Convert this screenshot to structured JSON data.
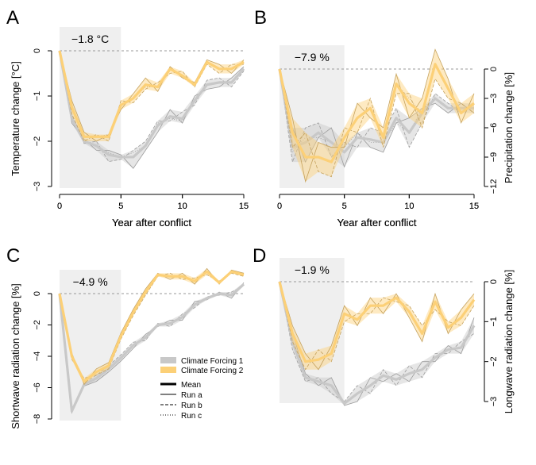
{
  "chart_data": [
    {
      "panel_label": "A",
      "type": "line",
      "annotation": "−1.8 °C",
      "xlabel": "Year after conflict",
      "ylabel": "Temperature change [°C]",
      "ylabel_side": "left",
      "xlim": [
        0,
        15
      ],
      "ylim": [
        -3,
        0.3
      ],
      "xticks": [
        0,
        5,
        10,
        15
      ],
      "yticks": [
        0,
        -1,
        -2,
        -3
      ],
      "ytick_labels": [
        "0",
        "−1",
        "−2",
        "−3"
      ],
      "highlight_x": [
        0,
        5
      ],
      "reference_y": 0,
      "x": [
        0,
        1,
        2,
        3,
        4,
        5,
        6,
        7,
        8,
        9,
        10,
        11,
        12,
        13,
        14,
        15
      ],
      "series": [
        {
          "name": "Climate Forcing 1",
          "color": "#c8c8c8",
          "mean": [
            0,
            -1.5,
            -2.0,
            -2.1,
            -2.3,
            -2.35,
            -2.35,
            -2.1,
            -1.65,
            -1.45,
            -1.5,
            -1.1,
            -0.75,
            -0.7,
            -0.7,
            -0.4
          ],
          "runs": [
            [
              0,
              -1.6,
              -1.95,
              -2.2,
              -2.2,
              -2.3,
              -2.6,
              -2.2,
              -1.8,
              -1.3,
              -1.6,
              -1.0,
              -0.85,
              -0.8,
              -0.6,
              -0.35
            ],
            [
              0,
              -1.4,
              -2.05,
              -2.0,
              -2.45,
              -2.4,
              -2.2,
              -2.0,
              -1.55,
              -1.55,
              -1.35,
              -1.2,
              -0.65,
              -0.6,
              -0.8,
              -0.45
            ],
            [
              0,
              -1.5,
              -2.0,
              -2.1,
              -2.25,
              -2.35,
              -2.25,
              -2.1,
              -1.6,
              -1.5,
              -1.55,
              -1.1,
              -0.75,
              -0.7,
              -0.7,
              -0.4
            ]
          ]
        },
        {
          "name": "Climate Forcing 2",
          "color": "#fcd077",
          "mean": [
            0,
            -1.25,
            -1.9,
            -1.9,
            -1.9,
            -1.2,
            -1.05,
            -0.75,
            -0.8,
            -0.4,
            -0.55,
            -0.75,
            -0.25,
            -0.4,
            -0.4,
            -0.25
          ],
          "runs": [
            [
              0,
              -1.1,
              -1.8,
              -2.0,
              -1.85,
              -1.3,
              -0.95,
              -0.6,
              -0.9,
              -0.35,
              -0.6,
              -0.7,
              -0.2,
              -0.3,
              -0.5,
              -0.2
            ],
            [
              0,
              -1.4,
              -2.0,
              -1.85,
              -2.0,
              -1.1,
              -1.15,
              -0.85,
              -0.7,
              -0.5,
              -0.45,
              -0.8,
              -0.3,
              -0.5,
              -0.3,
              -0.3
            ],
            [
              0,
              -1.25,
              -1.9,
              -1.9,
              -1.85,
              -1.2,
              -1.05,
              -0.8,
              -0.8,
              -0.35,
              -0.6,
              -0.75,
              -0.25,
              -0.4,
              -0.4,
              -0.25
            ]
          ]
        }
      ]
    },
    {
      "panel_label": "B",
      "type": "line",
      "annotation": "−7.9 %",
      "xlabel": "Year after conflict",
      "ylabel": "Precipitation change [%]",
      "ylabel_side": "right",
      "xlim": [
        0,
        15
      ],
      "ylim": [
        -12,
        1
      ],
      "xticks": [
        0,
        5,
        10,
        15
      ],
      "yticks": [
        0,
        -3,
        -6,
        -9,
        -12
      ],
      "ytick_labels": [
        "0",
        "−3",
        "−6",
        "−9",
        "−12"
      ],
      "highlight_x": [
        0,
        5
      ],
      "reference_y": 0,
      "x": [
        0,
        1,
        2,
        3,
        4,
        5,
        6,
        7,
        8,
        9,
        10,
        11,
        12,
        13,
        14,
        15
      ],
      "series": [
        {
          "name": "Climate Forcing 1",
          "color": "#c8c8c8",
          "mean": [
            0,
            -8.0,
            -7.5,
            -6.5,
            -7.5,
            -8.5,
            -7.0,
            -7.2,
            -7.5,
            -5.0,
            -6.5,
            -4.5,
            -3.0,
            -4.0,
            -4.0,
            -4.0
          ],
          "runs": [
            [
              0,
              -6.0,
              -9.5,
              -7.0,
              -6.0,
              -10.0,
              -6.5,
              -8.0,
              -8.5,
              -5.5,
              -5.0,
              -4.0,
              -3.5,
              -4.5,
              -3.5,
              -4.5
            ],
            [
              0,
              -9.5,
              -6.0,
              -5.5,
              -9.0,
              -7.5,
              -8.0,
              -6.0,
              -6.5,
              -4.0,
              -8.0,
              -5.5,
              -2.5,
              -3.5,
              -4.5,
              -3.5
            ],
            [
              0,
              -8.5,
              -7.0,
              -7.0,
              -7.5,
              -8.0,
              -6.5,
              -7.5,
              -7.5,
              -5.5,
              -6.5,
              -4.0,
              -3.0,
              -4.0,
              -4.0,
              -4.0
            ]
          ]
        },
        {
          "name": "Climate Forcing 2",
          "color": "#fcd077",
          "mean": [
            0,
            -6.5,
            -9.0,
            -9.0,
            -9.5,
            -7.0,
            -5.0,
            -4.0,
            -7.0,
            -1.5,
            -3.5,
            -4.5,
            0.5,
            -2.0,
            -4.5,
            -3.5
          ],
          "runs": [
            [
              0,
              -5.0,
              -11.5,
              -7.5,
              -8.0,
              -8.0,
              -3.5,
              -5.0,
              -6.0,
              -0.5,
              -5.0,
              -3.0,
              2.0,
              -1.0,
              -5.5,
              -2.5
            ],
            [
              0,
              -8.0,
              -6.5,
              -10.5,
              -11.0,
              -6.0,
              -6.5,
              -3.0,
              -8.0,
              -2.5,
              -2.5,
              -6.0,
              -1.0,
              -3.0,
              -3.5,
              -4.5
            ],
            [
              0,
              -6.5,
              -9.0,
              -9.0,
              -9.5,
              -7.0,
              -5.0,
              -4.0,
              -7.0,
              -1.5,
              -3.0,
              -4.5,
              0.5,
              -2.0,
              -4.5,
              -3.5
            ]
          ]
        }
      ]
    },
    {
      "panel_label": "C",
      "type": "line",
      "annotation": "−4.9 %",
      "xlabel": "Year after conflict",
      "ylabel": "Shortwave radiation change [%]",
      "ylabel_side": "left",
      "xlim": [
        0,
        15
      ],
      "ylim": [
        -8,
        2.3
      ],
      "xticks": [
        0,
        5,
        10,
        15
      ],
      "yticks": [
        0,
        -2,
        -4,
        -6,
        -8
      ],
      "ytick_labels": [
        "0",
        "−2",
        "−4",
        "−6",
        "−8"
      ],
      "highlight_x": [
        0,
        5
      ],
      "reference_y": 0,
      "x": [
        0,
        1,
        2,
        3,
        4,
        5,
        6,
        7,
        8,
        9,
        10,
        11,
        12,
        13,
        14,
        15
      ],
      "series": [
        {
          "name": "Climate Forcing 1",
          "color": "#c8c8c8",
          "mean": [
            0,
            -7.5,
            -5.8,
            -5.4,
            -4.8,
            -4.1,
            -3.3,
            -2.8,
            -2.0,
            -1.9,
            -1.5,
            -0.7,
            -0.3,
            0.0,
            -0.1,
            0.6
          ],
          "runs": [
            [
              0,
              -7.6,
              -5.9,
              -5.6,
              -5.0,
              -4.3,
              -3.5,
              -2.6,
              -2.1,
              -1.7,
              -1.7,
              -0.5,
              -0.4,
              0.1,
              -0.3,
              0.7
            ],
            [
              0,
              -7.4,
              -5.7,
              -5.2,
              -4.6,
              -3.9,
              -3.1,
              -3.0,
              -1.9,
              -2.1,
              -1.3,
              -0.9,
              -0.2,
              -0.1,
              0.1,
              0.5
            ],
            [
              0,
              -7.5,
              -5.8,
              -5.4,
              -4.8,
              -4.1,
              -3.3,
              -2.8,
              -2.0,
              -1.9,
              -1.5,
              -0.7,
              -0.3,
              0.0,
              -0.1,
              0.6
            ]
          ]
        },
        {
          "name": "Climate Forcing 2",
          "color": "#fcd077",
          "mean": [
            0,
            -4.0,
            -5.6,
            -5.0,
            -4.6,
            -2.7,
            -1.2,
            0.1,
            1.2,
            1.1,
            1.1,
            0.8,
            1.4,
            0.7,
            1.4,
            1.2
          ],
          "runs": [
            [
              0,
              -3.8,
              -5.8,
              -4.8,
              -4.4,
              -2.5,
              -1.0,
              0.3,
              1.3,
              0.9,
              1.3,
              0.6,
              1.6,
              0.6,
              1.5,
              1.3
            ],
            [
              0,
              -4.2,
              -5.4,
              -5.2,
              -4.8,
              -2.9,
              -1.4,
              -0.1,
              1.1,
              1.3,
              0.9,
              1.0,
              1.2,
              0.8,
              1.3,
              1.1
            ],
            [
              0,
              -4.0,
              -5.6,
              -5.0,
              -4.6,
              -2.7,
              -1.2,
              0.1,
              1.2,
              1.1,
              1.1,
              0.8,
              1.4,
              0.7,
              1.4,
              1.2
            ]
          ]
        }
      ]
    },
    {
      "panel_label": "D",
      "type": "line",
      "annotation": "−1.9 %",
      "xlabel": "Year after conflict",
      "ylabel": "Longwave radiation change [%]",
      "ylabel_side": "right",
      "xlim": [
        0,
        15
      ],
      "ylim": [
        -3.4,
        0.2
      ],
      "xticks": [
        0,
        5,
        10,
        15
      ],
      "yticks": [
        0,
        -1,
        -2,
        -3
      ],
      "ytick_labels": [
        "0",
        "−1",
        "−2",
        "−3"
      ],
      "highlight_x": [
        0,
        5
      ],
      "reference_y": 0,
      "x": [
        0,
        1,
        2,
        3,
        4,
        5,
        6,
        7,
        8,
        9,
        10,
        11,
        12,
        13,
        14,
        15
      ],
      "series": [
        {
          "name": "Climate Forcing 1",
          "color": "#c8c8c8",
          "mean": [
            0,
            -1.5,
            -2.4,
            -2.5,
            -2.6,
            -3.05,
            -2.8,
            -2.6,
            -2.35,
            -2.45,
            -2.3,
            -2.2,
            -1.9,
            -1.7,
            -1.65,
            -1.1
          ],
          "runs": [
            [
              0,
              -1.3,
              -2.3,
              -2.6,
              -2.4,
              -3.1,
              -3.0,
              -2.4,
              -2.5,
              -2.3,
              -2.5,
              -2.0,
              -2.0,
              -1.6,
              -1.8,
              -0.9
            ],
            [
              0,
              -1.7,
              -2.5,
              -2.4,
              -2.8,
              -3.0,
              -2.6,
              -2.8,
              -2.2,
              -2.6,
              -2.1,
              -2.4,
              -1.8,
              -1.8,
              -1.5,
              -1.3
            ],
            [
              0,
              -1.5,
              -2.4,
              -2.5,
              -2.6,
              -3.05,
              -2.8,
              -2.6,
              -2.35,
              -2.45,
              -2.3,
              -2.2,
              -1.9,
              -1.7,
              -1.65,
              -1.1
            ]
          ]
        },
        {
          "name": "Climate Forcing 2",
          "color": "#fcd077",
          "mean": [
            0,
            -1.3,
            -2.0,
            -1.95,
            -1.8,
            -0.8,
            -0.95,
            -0.6,
            -0.6,
            -0.4,
            -0.75,
            -1.3,
            -0.5,
            -1.15,
            -0.9,
            -0.45
          ],
          "runs": [
            [
              0,
              -1.1,
              -1.8,
              -2.2,
              -1.6,
              -0.6,
              -1.1,
              -0.4,
              -0.8,
              -0.3,
              -0.9,
              -1.5,
              -0.3,
              -1.3,
              -0.7,
              -0.3
            ],
            [
              0,
              -1.5,
              -2.2,
              -1.7,
              -2.0,
              -1.0,
              -0.8,
              -0.8,
              -0.4,
              -0.5,
              -0.6,
              -1.1,
              -0.7,
              -1.0,
              -1.1,
              -0.6
            ],
            [
              0,
              -1.3,
              -2.0,
              -1.95,
              -1.8,
              -0.8,
              -0.95,
              -0.6,
              -0.6,
              -0.4,
              -0.75,
              -1.3,
              -0.5,
              -1.15,
              -0.9,
              -0.45
            ]
          ]
        }
      ]
    }
  ],
  "legend": {
    "entries": [
      "Climate Forcing 1",
      "Climate Forcing 2"
    ],
    "colors": [
      "#c8c8c8",
      "#fcd077"
    ],
    "line_styles": [
      {
        "label": "Mean",
        "dash": "solid",
        "weight": "thick"
      },
      {
        "label": "Run a",
        "dash": "solid",
        "weight": "thin"
      },
      {
        "label": "Run b",
        "dash": "dashed",
        "weight": "thin"
      },
      {
        "label": "Run c",
        "dash": "dotted",
        "weight": "thin"
      }
    ]
  }
}
